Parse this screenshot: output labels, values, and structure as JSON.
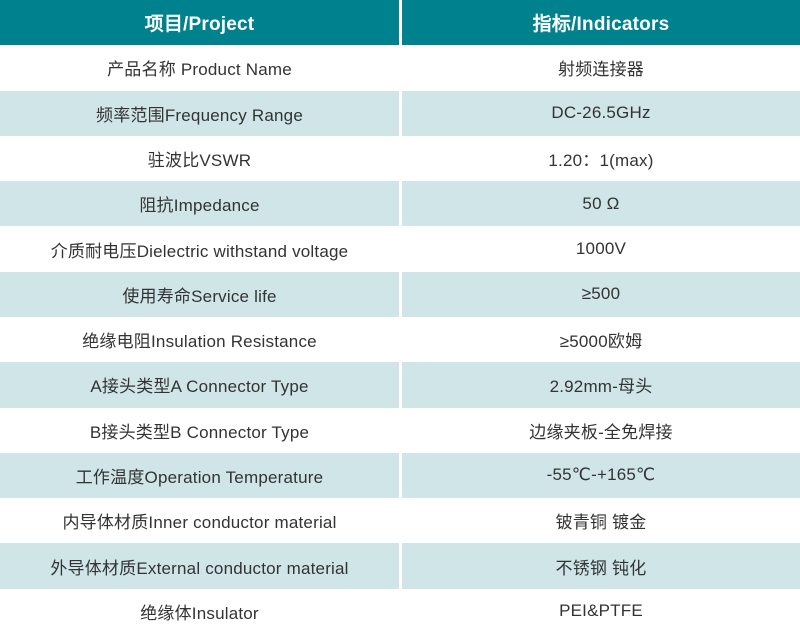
{
  "table": {
    "header": {
      "project": "项目/Project",
      "indicators": "指标/Indicators"
    },
    "rows": [
      {
        "project": "产品名称 Product Name",
        "indicator": "射频连接器"
      },
      {
        "project": "频率范围Frequency Range",
        "indicator": "DC-26.5GHz"
      },
      {
        "project": "驻波比VSWR",
        "indicator": "1.20：1(max)"
      },
      {
        "project": "阻抗Impedance",
        "indicator": "50 Ω"
      },
      {
        "project": "介质耐电压Dielectric withstand voltage",
        "indicator": "1000V"
      },
      {
        "project": "使用寿命Service life",
        "indicator": "≥500"
      },
      {
        "project": "绝缘电阻Insulation Resistance",
        "indicator": "≥5000欧姆"
      },
      {
        "project": "A接头类型A Connector Type",
        "indicator": "2.92mm-母头"
      },
      {
        "project": "B接头类型B Connector Type",
        "indicator": "边缘夹板-全免焊接"
      },
      {
        "project": "工作温度Operation Temperature",
        "indicator": "-55℃-+165℃"
      },
      {
        "project": "内导体材质Inner conductor material",
        "indicator": "铍青铜 镀金"
      },
      {
        "project": "外导体材质External conductor material",
        "indicator": "不锈钢 钝化"
      },
      {
        "project": "绝缘体Insulator",
        "indicator": "PEI&PTFE"
      }
    ],
    "colors": {
      "header_bg": "#00828e",
      "header_text": "#ffffff",
      "row_alt_bg": "#cfe5e8",
      "row_bg": "#ffffff",
      "body_text": "#333333",
      "divider": "#ffffff"
    }
  }
}
